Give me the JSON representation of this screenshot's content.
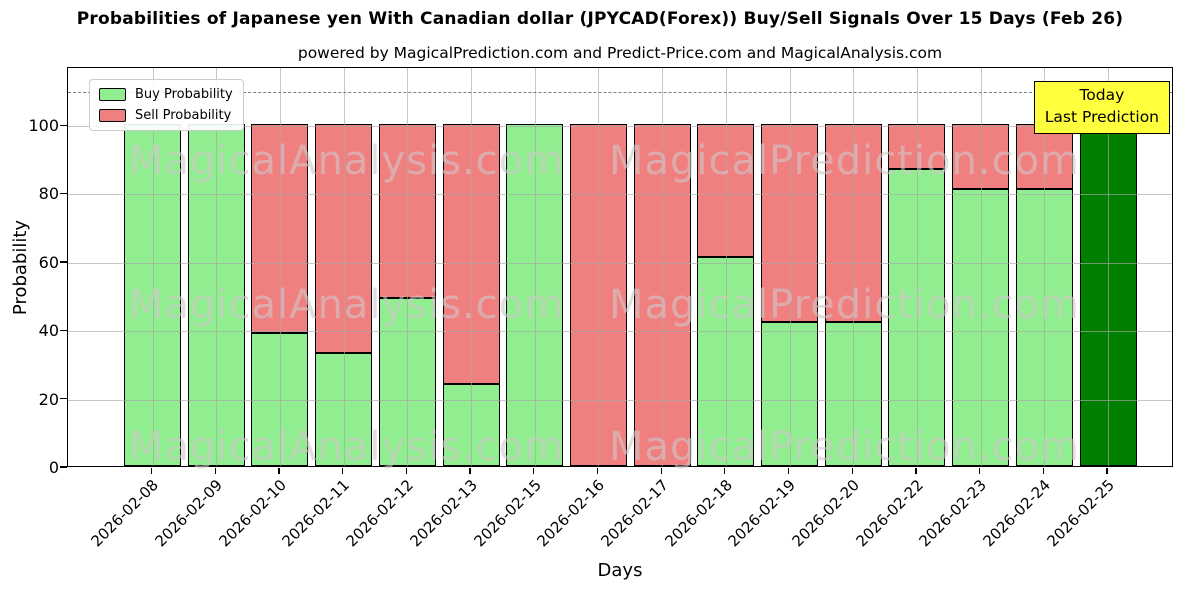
{
  "header": {
    "title": "Probabilities of Japanese yen With Canadian dollar (JPYCAD(Forex)) Buy/Sell Signals Over 15 Days (Feb 26)",
    "subtitle": "powered by MagicalPrediction.com and Predict-Price.com and MagicalAnalysis.com"
  },
  "legend": {
    "items": [
      {
        "label": "Buy Probability",
        "color": "#90EE90"
      },
      {
        "label": "Sell Probability",
        "color": "#F08080"
      }
    ]
  },
  "annotation": {
    "line1": "Today",
    "line2": "Last Prediction",
    "bg_color": "#FFFF3D"
  },
  "axes": {
    "ylabel": "Probability",
    "xlabel": "Days",
    "yticks": [
      0,
      20,
      40,
      60,
      80,
      100
    ],
    "ylim": [
      0,
      117
    ],
    "grid": true
  },
  "watermarks": {
    "left_text": "MagicalAnalysis.com",
    "right_text": "MagicalPrediction.com"
  },
  "chart_data": {
    "type": "bar",
    "stacked": true,
    "title": "Probabilities of Japanese yen With Canadian dollar (JPYCAD(Forex)) Buy/Sell Signals Over 15 Days (Feb 26)",
    "xlabel": "Days",
    "ylabel": "Probability",
    "ylim": [
      0,
      117
    ],
    "dashed_line_y": 110,
    "legend_position": "upper left",
    "grid": true,
    "categories": [
      "2026-02-08",
      "2026-02-09",
      "2026-02-10",
      "2026-02-11",
      "2026-02-12",
      "2026-02-13",
      "2026-02-15",
      "2026-02-16",
      "2026-02-17",
      "2026-02-18",
      "2026-02-19",
      "2026-02-20",
      "2026-02-22",
      "2026-02-23",
      "2026-02-24",
      "2026-02-25"
    ],
    "series": [
      {
        "name": "Buy Probability",
        "color": "#90EE90",
        "values": [
          100,
          100,
          39,
          33,
          49,
          24,
          100,
          0,
          0,
          61,
          42,
          42,
          87,
          81,
          81,
          100
        ]
      },
      {
        "name": "Sell Probability",
        "color": "#F08080",
        "values": [
          0,
          0,
          61,
          67,
          51,
          76,
          0,
          100,
          100,
          39,
          58,
          58,
          13,
          19,
          19,
          0
        ]
      }
    ],
    "today_bar": {
      "category": "2026-02-25",
      "index": 15,
      "value": 100,
      "color": "#008000",
      "label": "Today Last Prediction"
    },
    "edge_color": "#000000"
  }
}
